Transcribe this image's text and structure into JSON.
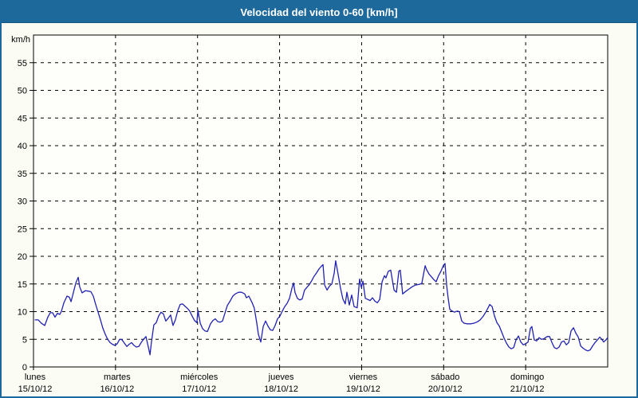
{
  "window": {
    "title": "Velocidad del viento 0-60 [km/h]"
  },
  "colors": {
    "title_bar": "#1e699c",
    "title_text": "#ffffff",
    "frame_border": "#1e699c",
    "background": "#fbfdf5",
    "plot_background": "#fefffb",
    "plot_border": "#000000",
    "grid": "#000000",
    "line": "#2121b2",
    "label_text": "#000000"
  },
  "chart_data": {
    "type": "line",
    "title": "Velocidad del viento 0-60 [km/h]",
    "ylabel": "km/h",
    "grid": "dashed",
    "legend": "none",
    "y_axis": {
      "label": "km/h",
      "min": 0,
      "max": 60,
      "tick_step": 5,
      "tick_labels": [
        "0",
        "5",
        "10",
        "15",
        "20",
        "25",
        "30",
        "35",
        "40",
        "45",
        "50",
        "55"
      ]
    },
    "x_axis": {
      "hours_total": 168,
      "days": [
        {
          "name": "lunes",
          "date": "15/10/12"
        },
        {
          "name": "martes",
          "date": "16/10/12"
        },
        {
          "name": "miércoles",
          "date": "17/10/12"
        },
        {
          "name": "jueves",
          "date": "18/10/12"
        },
        {
          "name": "viernes",
          "date": "19/10/12"
        },
        {
          "name": "sábado",
          "date": "20/10/12"
        },
        {
          "name": "domingo",
          "date": "21/10/12"
        }
      ]
    },
    "series": [
      {
        "name": "Velocidad del viento",
        "unit": "km/h",
        "points": [
          [
            0.5,
            8.5
          ],
          [
            1.4,
            8.5
          ],
          [
            2.3,
            7.9
          ],
          [
            3.3,
            7.5
          ],
          [
            4.2,
            9.0
          ],
          [
            4.9,
            9.8
          ],
          [
            5.6,
            9.8
          ],
          [
            6.3,
            9.0
          ],
          [
            7.0,
            9.7
          ],
          [
            7.7,
            9.5
          ],
          [
            8.2,
            10.1
          ],
          [
            8.9,
            11.6
          ],
          [
            9.8,
            12.8
          ],
          [
            10.5,
            12.6
          ],
          [
            11.0,
            11.8
          ],
          [
            11.7,
            13.5
          ],
          [
            12.4,
            15.2
          ],
          [
            13.1,
            16.2
          ],
          [
            13.5,
            14.5
          ],
          [
            14.2,
            13.4
          ],
          [
            15.2,
            13.8
          ],
          [
            16.1,
            13.7
          ],
          [
            16.8,
            13.6
          ],
          [
            17.5,
            12.8
          ],
          [
            18.2,
            11.3
          ],
          [
            18.9,
            9.9
          ],
          [
            19.6,
            8.5
          ],
          [
            20.3,
            7.0
          ],
          [
            21.0,
            5.9
          ],
          [
            21.7,
            5.0
          ],
          [
            22.4,
            4.4
          ],
          [
            23.1,
            4.1
          ],
          [
            23.8,
            3.9
          ],
          [
            24.5,
            4.2
          ],
          [
            25.2,
            5.0
          ],
          [
            25.9,
            4.9
          ],
          [
            26.6,
            4.3
          ],
          [
            27.3,
            3.7
          ],
          [
            28.0,
            4.1
          ],
          [
            28.7,
            4.4
          ],
          [
            29.4,
            3.9
          ],
          [
            30.1,
            3.6
          ],
          [
            30.8,
            3.7
          ],
          [
            31.5,
            4.4
          ],
          [
            32.2,
            5.0
          ],
          [
            32.9,
            5.5
          ],
          [
            33.6,
            3.6
          ],
          [
            34.1,
            2.2
          ],
          [
            34.5,
            4.5
          ],
          [
            35.2,
            7.6
          ],
          [
            35.9,
            8.0
          ],
          [
            36.6,
            9.2
          ],
          [
            37.3,
            9.9
          ],
          [
            38.0,
            9.6
          ],
          [
            38.7,
            8.3
          ],
          [
            39.4,
            8.8
          ],
          [
            40.1,
            9.4
          ],
          [
            40.8,
            7.5
          ],
          [
            41.5,
            8.5
          ],
          [
            42.2,
            10.2
          ],
          [
            42.9,
            11.3
          ],
          [
            43.6,
            11.4
          ],
          [
            44.3,
            11.0
          ],
          [
            45.0,
            10.6
          ],
          [
            45.7,
            10.1
          ],
          [
            46.4,
            9.2
          ],
          [
            47.1,
            8.4
          ],
          [
            47.8,
            8.0
          ],
          [
            48.1,
            10.3
          ],
          [
            48.8,
            7.9
          ],
          [
            49.5,
            6.9
          ],
          [
            50.2,
            6.5
          ],
          [
            50.9,
            6.4
          ],
          [
            51.8,
            7.8
          ],
          [
            52.5,
            8.4
          ],
          [
            53.2,
            8.7
          ],
          [
            53.9,
            8.2
          ],
          [
            54.6,
            8.1
          ],
          [
            55.3,
            8.3
          ],
          [
            56.0,
            9.7
          ],
          [
            56.7,
            11.1
          ],
          [
            57.6,
            12.0
          ],
          [
            58.3,
            12.8
          ],
          [
            59.0,
            13.2
          ],
          [
            60.0,
            13.5
          ],
          [
            60.9,
            13.5
          ],
          [
            61.8,
            13.2
          ],
          [
            62.3,
            12.5
          ],
          [
            63.0,
            12.8
          ],
          [
            63.9,
            11.7
          ],
          [
            64.6,
            10.6
          ],
          [
            65.3,
            8.0
          ],
          [
            65.8,
            5.9
          ],
          [
            66.5,
            4.5
          ],
          [
            67.2,
            7.3
          ],
          [
            67.9,
            8.3
          ],
          [
            68.6,
            7.4
          ],
          [
            69.3,
            6.7
          ],
          [
            70.0,
            6.6
          ],
          [
            70.7,
            7.5
          ],
          [
            71.4,
            8.7
          ],
          [
            72.1,
            9.2
          ],
          [
            72.8,
            10.1
          ],
          [
            73.5,
            10.9
          ],
          [
            74.2,
            11.5
          ],
          [
            74.9,
            12.4
          ],
          [
            75.6,
            14.2
          ],
          [
            76.1,
            15.2
          ],
          [
            76.5,
            13.5
          ],
          [
            77.2,
            12.4
          ],
          [
            77.9,
            12.1
          ],
          [
            78.6,
            12.3
          ],
          [
            79.3,
            13.9
          ],
          [
            80.0,
            14.4
          ],
          [
            80.7,
            14.9
          ],
          [
            81.4,
            15.6
          ],
          [
            82.1,
            16.4
          ],
          [
            82.8,
            17.0
          ],
          [
            83.5,
            17.7
          ],
          [
            84.2,
            18.2
          ],
          [
            84.7,
            18.5
          ],
          [
            85.2,
            14.8
          ],
          [
            85.9,
            13.9
          ],
          [
            86.6,
            14.6
          ],
          [
            87.3,
            15.0
          ],
          [
            88.0,
            17.0
          ],
          [
            88.4,
            19.2
          ],
          [
            89.1,
            16.8
          ],
          [
            89.8,
            14.3
          ],
          [
            90.5,
            12.3
          ],
          [
            91.2,
            11.4
          ],
          [
            91.7,
            13.5
          ],
          [
            92.4,
            11.2
          ],
          [
            93.1,
            13.0
          ],
          [
            93.8,
            10.9
          ],
          [
            94.7,
            10.7
          ],
          [
            95.4,
            15.9
          ],
          [
            95.9,
            14.4
          ],
          [
            96.4,
            15.5
          ],
          [
            97.1,
            12.4
          ],
          [
            97.8,
            12.2
          ],
          [
            98.5,
            12.0
          ],
          [
            99.2,
            12.5
          ],
          [
            99.9,
            11.9
          ],
          [
            100.6,
            11.6
          ],
          [
            101.3,
            12.2
          ],
          [
            102.0,
            15.4
          ],
          [
            102.7,
            16.5
          ],
          [
            103.1,
            16.1
          ],
          [
            103.8,
            17.3
          ],
          [
            104.5,
            17.5
          ],
          [
            105.5,
            13.9
          ],
          [
            106.2,
            13.5
          ],
          [
            106.9,
            17.3
          ],
          [
            107.3,
            17.5
          ],
          [
            108.0,
            13.2
          ],
          [
            109.0,
            13.7
          ],
          [
            109.9,
            14.1
          ],
          [
            110.8,
            14.5
          ],
          [
            111.8,
            14.8
          ],
          [
            112.7,
            14.9
          ],
          [
            113.6,
            15.1
          ],
          [
            114.6,
            18.3
          ],
          [
            115.0,
            17.6
          ],
          [
            115.7,
            16.8
          ],
          [
            116.4,
            16.3
          ],
          [
            117.1,
            15.8
          ],
          [
            117.8,
            15.4
          ],
          [
            118.5,
            16.5
          ],
          [
            119.2,
            17.3
          ],
          [
            119.9,
            18.3
          ],
          [
            120.4,
            18.7
          ],
          [
            120.9,
            14.7
          ],
          [
            121.3,
            12.5
          ],
          [
            121.8,
            10.4
          ],
          [
            122.5,
            10.1
          ],
          [
            123.2,
            9.9
          ],
          [
            123.9,
            10.1
          ],
          [
            124.6,
            10.0
          ],
          [
            125.3,
            8.3
          ],
          [
            126.0,
            7.9
          ],
          [
            126.9,
            7.8
          ],
          [
            127.9,
            7.8
          ],
          [
            128.8,
            7.9
          ],
          [
            129.7,
            8.1
          ],
          [
            130.7,
            8.5
          ],
          [
            131.6,
            9.2
          ],
          [
            132.5,
            10.1
          ],
          [
            133.5,
            11.3
          ],
          [
            134.2,
            10.9
          ],
          [
            134.9,
            9.2
          ],
          [
            135.6,
            8.0
          ],
          [
            136.3,
            7.4
          ],
          [
            137.0,
            6.3
          ],
          [
            137.7,
            5.2
          ],
          [
            138.4,
            4.3
          ],
          [
            139.1,
            3.6
          ],
          [
            139.8,
            3.3
          ],
          [
            140.5,
            3.5
          ],
          [
            141.2,
            4.9
          ],
          [
            141.9,
            5.6
          ],
          [
            142.6,
            4.5
          ],
          [
            143.3,
            4.0
          ],
          [
            144.0,
            4.2
          ],
          [
            144.7,
            4.5
          ],
          [
            145.4,
            7.0
          ],
          [
            145.8,
            7.3
          ],
          [
            146.5,
            4.9
          ],
          [
            147.2,
            4.7
          ],
          [
            147.9,
            5.3
          ],
          [
            148.6,
            5.0
          ],
          [
            149.3,
            5.1
          ],
          [
            150.3,
            5.5
          ],
          [
            151.0,
            5.5
          ],
          [
            151.7,
            4.4
          ],
          [
            152.4,
            3.5
          ],
          [
            153.1,
            3.3
          ],
          [
            153.8,
            3.6
          ],
          [
            154.5,
            4.5
          ],
          [
            155.2,
            4.7
          ],
          [
            155.9,
            4.0
          ],
          [
            156.6,
            4.4
          ],
          [
            157.3,
            6.5
          ],
          [
            158.0,
            7.1
          ],
          [
            158.7,
            6.1
          ],
          [
            159.4,
            5.4
          ],
          [
            160.1,
            3.8
          ],
          [
            160.8,
            3.4
          ],
          [
            161.5,
            3.1
          ],
          [
            162.2,
            2.9
          ],
          [
            162.9,
            3.1
          ],
          [
            163.6,
            3.8
          ],
          [
            164.3,
            4.4
          ],
          [
            165.0,
            4.9
          ],
          [
            165.7,
            5.4
          ],
          [
            166.4,
            4.9
          ],
          [
            166.8,
            4.5
          ],
          [
            167.5,
            4.9
          ],
          [
            168.0,
            5.3
          ]
        ]
      }
    ]
  }
}
